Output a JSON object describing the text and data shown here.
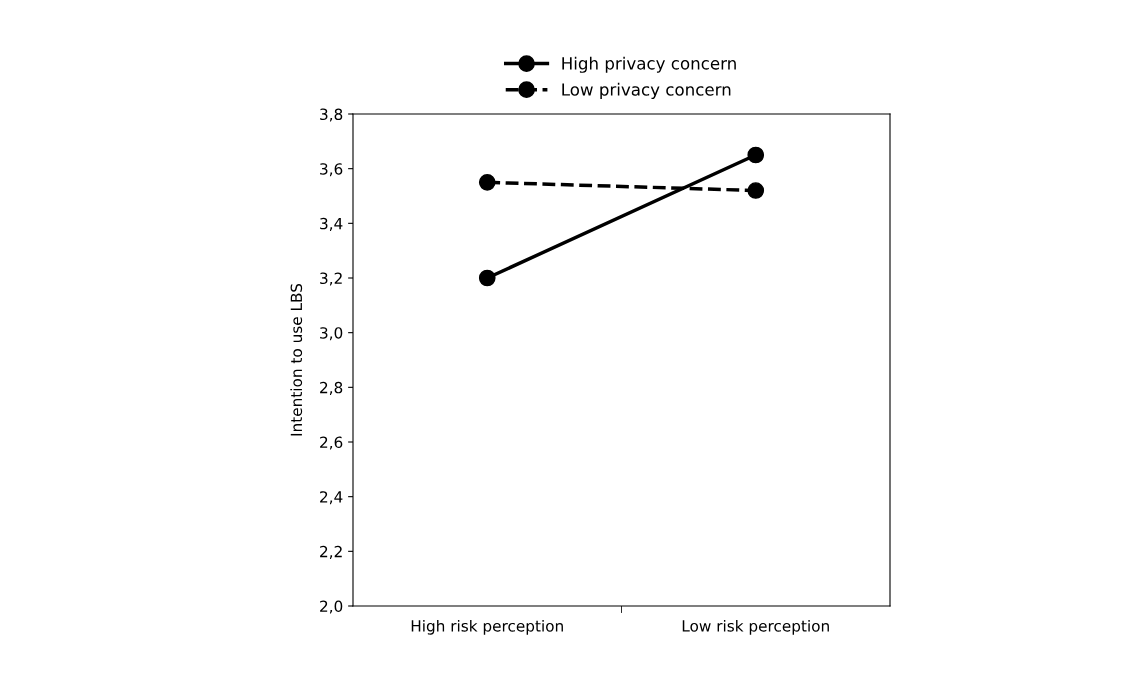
{
  "chart_data": {
    "type": "line",
    "ylabel": "Intention to use LBS",
    "categories": [
      "High risk perception",
      "Low risk perception"
    ],
    "series": [
      {
        "name": "High privacy concern",
        "color": "#000000",
        "values": [
          3.2,
          3.65
        ],
        "line_style": "solid"
      },
      {
        "name": "Low privacy concern",
        "color": "#000000",
        "values": [
          3.55,
          3.52
        ],
        "line_style": "dashed"
      }
    ],
    "ylim": [
      2.0,
      3.8
    ],
    "yticks": [
      {
        "value": 2.0,
        "label": "2,0"
      },
      {
        "value": 2.2,
        "label": "2,2"
      },
      {
        "value": 2.4,
        "label": "2,4"
      },
      {
        "value": 2.6,
        "label": "2,6"
      },
      {
        "value": 2.8,
        "label": "2,8"
      },
      {
        "value": 3.0,
        "label": "3,0"
      },
      {
        "value": 3.2,
        "label": "3,2"
      },
      {
        "value": 3.4,
        "label": "3,4"
      },
      {
        "value": 3.6,
        "label": "3,6"
      },
      {
        "value": 3.8,
        "label": "3,8"
      }
    ],
    "marker": "circle",
    "legend": "top",
    "grid": false
  }
}
